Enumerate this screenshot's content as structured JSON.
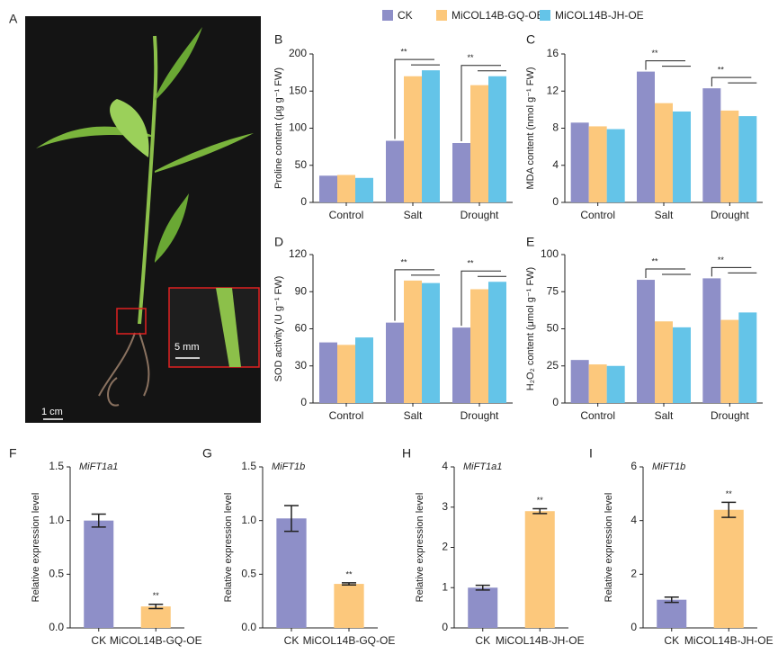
{
  "panel_a": {
    "label": "A",
    "scale_bar": "1 cm",
    "inset_scale_bar": "5 mm"
  },
  "chart_data": [
    {
      "type": "bar",
      "label": "B",
      "ylabel": "Proline content (μg g⁻¹ FW)",
      "categories": [
        "Control",
        "Salt",
        "Drought"
      ],
      "series": [
        {
          "name": "CK",
          "color": "#8e8fc8",
          "values": [
            36,
            83,
            80
          ]
        },
        {
          "name": "MiCOL14B-GQ-OE",
          "color": "#fcc87c",
          "values": [
            37,
            170,
            158
          ]
        },
        {
          "name": "MiCOL14B-JH-OE",
          "color": "#64c4e8",
          "values": [
            33,
            178,
            170
          ]
        }
      ],
      "significance": [
        null,
        "**",
        "**"
      ],
      "ylim": [
        0,
        200
      ],
      "yticks": [
        0,
        50,
        100,
        150,
        200
      ]
    },
    {
      "type": "bar",
      "label": "C",
      "ylabel": "MDA content (nmol g⁻¹ FW)",
      "categories": [
        "Control",
        "Salt",
        "Drought"
      ],
      "series": [
        {
          "name": "CK",
          "color": "#8e8fc8",
          "values": [
            8.6,
            14.1,
            12.3
          ]
        },
        {
          "name": "MiCOL14B-GQ-OE",
          "color": "#fcc87c",
          "values": [
            8.2,
            10.7,
            9.9
          ]
        },
        {
          "name": "MiCOL14B-JH-OE",
          "color": "#64c4e8",
          "values": [
            7.9,
            9.8,
            9.3
          ]
        }
      ],
      "significance": [
        null,
        "**",
        "**"
      ],
      "ylim": [
        0,
        16
      ],
      "yticks": [
        0,
        4,
        8,
        12,
        16
      ]
    },
    {
      "type": "bar",
      "label": "D",
      "ylabel": "SOD activity (U g⁻¹ FW)",
      "categories": [
        "Control",
        "Salt",
        "Drought"
      ],
      "series": [
        {
          "name": "CK",
          "color": "#8e8fc8",
          "values": [
            49,
            65,
            61
          ]
        },
        {
          "name": "MiCOL14B-GQ-OE",
          "color": "#fcc87c",
          "values": [
            47,
            99,
            92
          ]
        },
        {
          "name": "MiCOL14B-JH-OE",
          "color": "#64c4e8",
          "values": [
            53,
            97,
            98
          ]
        }
      ],
      "significance": [
        null,
        "**",
        "**"
      ],
      "ylim": [
        0,
        120
      ],
      "yticks": [
        0,
        30,
        60,
        90,
        120
      ]
    },
    {
      "type": "bar",
      "label": "E",
      "ylabel": "H₂O₂ content (μmol g⁻¹ FW)",
      "categories": [
        "Control",
        "Salt",
        "Drought"
      ],
      "series": [
        {
          "name": "CK",
          "color": "#8e8fc8",
          "values": [
            29,
            83,
            84
          ]
        },
        {
          "name": "MiCOL14B-GQ-OE",
          "color": "#fcc87c",
          "values": [
            26,
            55,
            56
          ]
        },
        {
          "name": "MiCOL14B-JH-OE",
          "color": "#64c4e8",
          "values": [
            25,
            51,
            61
          ]
        }
      ],
      "significance": [
        null,
        "**",
        "**"
      ],
      "ylim": [
        0,
        100
      ],
      "yticks": [
        0,
        25,
        50,
        75,
        100
      ]
    },
    {
      "type": "bar",
      "label": "F",
      "title": "MiFT1a1",
      "ylabel": "Relative expression level",
      "categories": [
        "CK",
        "MiCOL14B-GQ-OE"
      ],
      "values": [
        1.0,
        0.2
      ],
      "errors": [
        0.06,
        0.02
      ],
      "colors": [
        "#8e8fc8",
        "#fcc87c"
      ],
      "significance": [
        null,
        "**"
      ],
      "ylim": [
        0,
        1.5
      ],
      "yticks": [
        {
          "value": 0,
          "label": "0.0"
        },
        0.5,
        {
          "value": 1,
          "label": "1.0"
        },
        1.5
      ]
    },
    {
      "type": "bar",
      "label": "G",
      "title": "MiFT1b",
      "ylabel": "Relative expression level",
      "categories": [
        "CK",
        "MiCOL14B-GQ-OE"
      ],
      "values": [
        1.02,
        0.41
      ],
      "errors": [
        0.12,
        0.01
      ],
      "colors": [
        "#8e8fc8",
        "#fcc87c"
      ],
      "significance": [
        null,
        "**"
      ],
      "ylim": [
        0,
        1.5
      ],
      "yticks": [
        {
          "value": 0,
          "label": "0.0"
        },
        0.5,
        {
          "value": 1,
          "label": "1.0"
        },
        1.5
      ]
    },
    {
      "type": "bar",
      "label": "H",
      "title": "MiFT1a1",
      "ylabel": "Relative expression level",
      "categories": [
        "CK",
        "MiCOL14B-JH-OE"
      ],
      "values": [
        1.0,
        2.9
      ],
      "errors": [
        0.06,
        0.06
      ],
      "colors": [
        "#8e8fc8",
        "#fcc87c"
      ],
      "significance": [
        null,
        "**"
      ],
      "ylim": [
        0,
        4
      ],
      "yticks": [
        0,
        1,
        2,
        3,
        4
      ]
    },
    {
      "type": "bar",
      "label": "I",
      "title": "MiFT1b",
      "ylabel": "Relative expression level",
      "categories": [
        "CK",
        "MiCOL14B-JH-OE"
      ],
      "values": [
        1.05,
        4.4
      ],
      "errors": [
        0.1,
        0.28
      ],
      "colors": [
        "#8e8fc8",
        "#fcc87c"
      ],
      "significance": [
        null,
        "**"
      ],
      "ylim": [
        0,
        6
      ],
      "yticks": [
        0,
        2,
        4,
        6
      ]
    }
  ]
}
